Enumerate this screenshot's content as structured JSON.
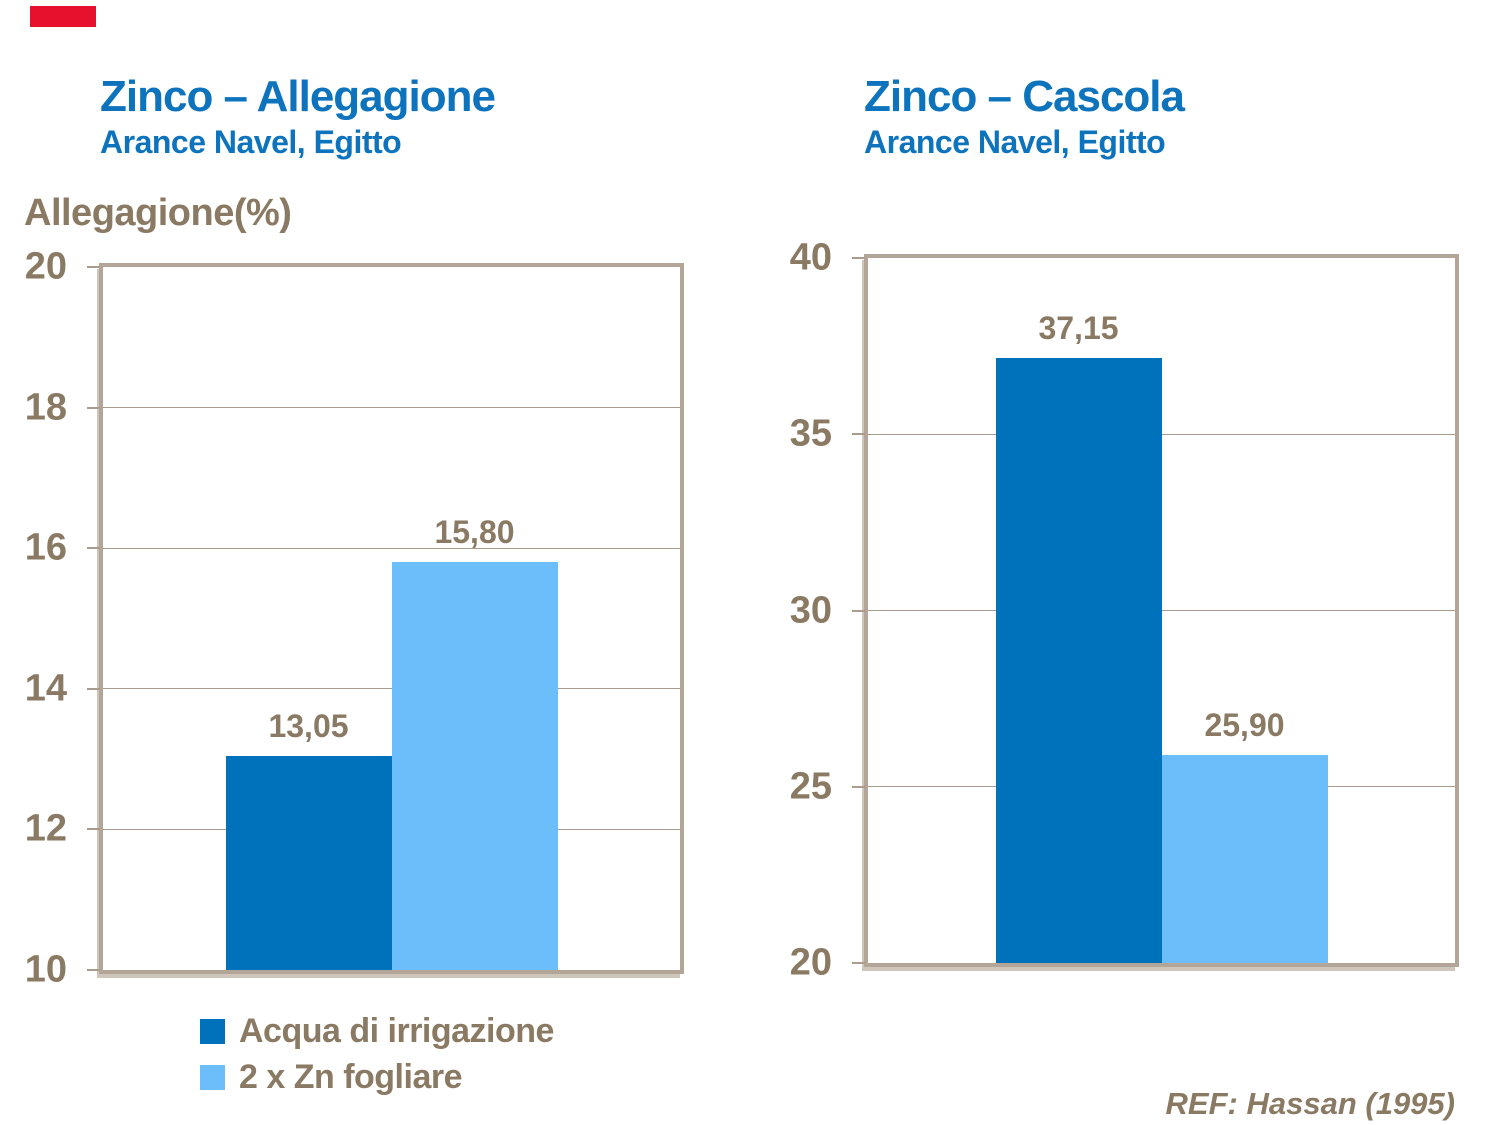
{
  "colors": {
    "accent_red": "#E8112D",
    "title_blue": "#0D73BD",
    "bar_dark_blue": "#0071BB",
    "bar_light_blue": "#6CBEFA",
    "text_brown": "#8A7A63",
    "plot_border_tan": "#B3A698",
    "gridline_tan": "#A99C8D"
  },
  "chart_data": [
    {
      "type": "bar",
      "title": "Zinco – Allegagione",
      "subtitle": "Arance Navel, Egitto",
      "ylabel": "Allegagione(%)",
      "xlabel": "",
      "ylim": [
        10,
        20
      ],
      "yticks": [
        10,
        12,
        14,
        16,
        18,
        20
      ],
      "grid": true,
      "legend_position": "below-left-chart",
      "series": [
        {
          "name": "Acqua di irrigazione",
          "value": 13.05,
          "label": "13,05",
          "color": "#0071BB"
        },
        {
          "name": "2 x Zn fogliare",
          "value": 15.8,
          "label": "15,80",
          "color": "#6CBEFA"
        }
      ]
    },
    {
      "type": "bar",
      "title": "Zinco – Cascola",
      "subtitle": "Arance Navel, Egitto",
      "ylabel": "",
      "xlabel": "",
      "ylim": [
        20,
        40
      ],
      "yticks": [
        20,
        25,
        30,
        35,
        40
      ],
      "grid": true,
      "series": [
        {
          "name": "Acqua di irrigazione",
          "value": 37.15,
          "label": "37,15",
          "color": "#0071BB"
        },
        {
          "name": "2 x Zn fogliare",
          "value": 25.9,
          "label": "25,90",
          "color": "#6CBEFA"
        }
      ]
    }
  ],
  "legend": {
    "items": [
      {
        "label": "Acqua di irrigazione",
        "color": "#0071BB"
      },
      {
        "label": "2 x Zn fogliare",
        "color": "#6CBEFA"
      }
    ]
  },
  "footer": {
    "ref": "REF: Hassan (1995)"
  }
}
